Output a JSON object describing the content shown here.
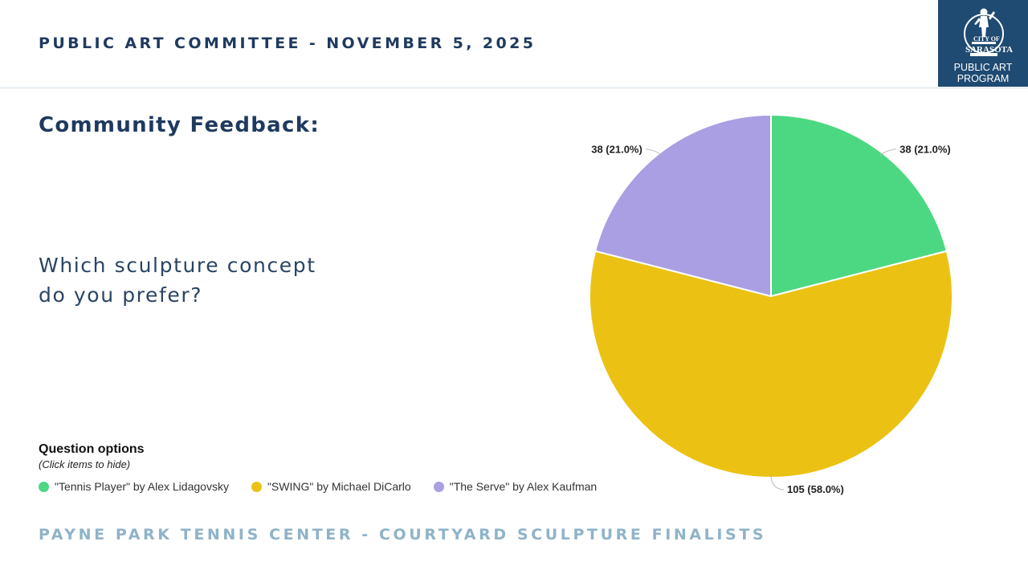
{
  "header": {
    "title": "PUBLIC ART COMMITTEE - NOVEMBER 5, 2025"
  },
  "logo": {
    "line1": "PUBLIC ART",
    "line2": "PROGRAM",
    "emblem_text": "CITY OF SARASOTA",
    "emblem_top": "CITY OF",
    "emblem_bottom": "SARASOTA"
  },
  "section_title": "Community Feedback:",
  "question": {
    "line1": "Which sculpture concept",
    "line2": "do you prefer?"
  },
  "legend": {
    "title": "Question options",
    "hint": "(Click items to hide)"
  },
  "footer": {
    "title": "PAYNE PARK TENNIS CENTER - COURTYARD SCULPTURE FINALISTS"
  },
  "chart_data": {
    "type": "pie",
    "title": "",
    "categories": [
      "\"Tennis Player\" by Alex Lidagovsky",
      "\"SWING\" by Michael DiCarlo",
      "\"The Serve\" by Alex Kaufman"
    ],
    "values": [
      38,
      105,
      38
    ],
    "percentages": [
      21.0,
      58.0,
      21.0
    ],
    "data_labels": [
      "38 (21.0%)",
      "105 (58.0%)",
      "38 (21.0%)"
    ],
    "colors": [
      "#4cd882",
      "#ebc214",
      "#aa9fe2"
    ],
    "legend_position": "bottom-left"
  }
}
